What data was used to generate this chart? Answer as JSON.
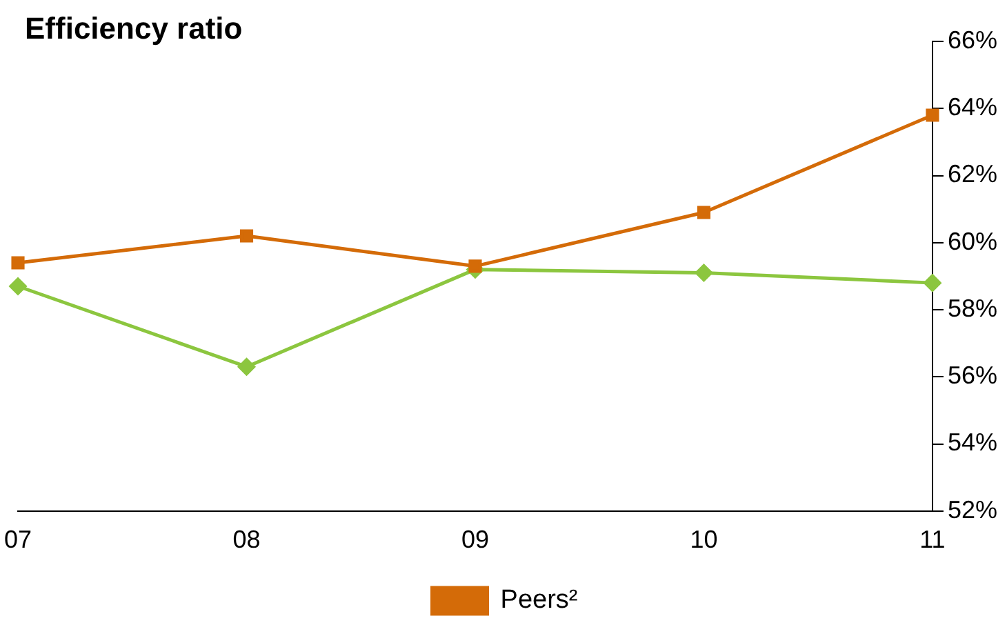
{
  "chart_data": {
    "type": "line",
    "title": "Efficiency ratio",
    "categories": [
      "07",
      "08",
      "09",
      "10",
      "11"
    ],
    "series": [
      {
        "color": "#8cc63f",
        "marker": "diamond",
        "values": [
          58.7,
          56.3,
          59.2,
          59.1,
          58.8
        ]
      },
      {
        "name": "Peers²",
        "color": "#d46b08",
        "marker": "square",
        "values": [
          59.4,
          60.2,
          59.3,
          60.9,
          63.8
        ]
      }
    ],
    "ylim": [
      52,
      66
    ],
    "yticks": [
      {
        "value": 52,
        "label": "52%"
      },
      {
        "value": 54,
        "label": "54%"
      },
      {
        "value": 56,
        "label": "56%"
      },
      {
        "value": 58,
        "label": "58%"
      },
      {
        "value": 60,
        "label": "60%"
      },
      {
        "value": 62,
        "label": "62%"
      },
      {
        "value": 64,
        "label": "64%"
      },
      {
        "value": 66,
        "label": "66%"
      }
    ],
    "grid": false,
    "legend": "bottom",
    "line_style": "solid"
  }
}
